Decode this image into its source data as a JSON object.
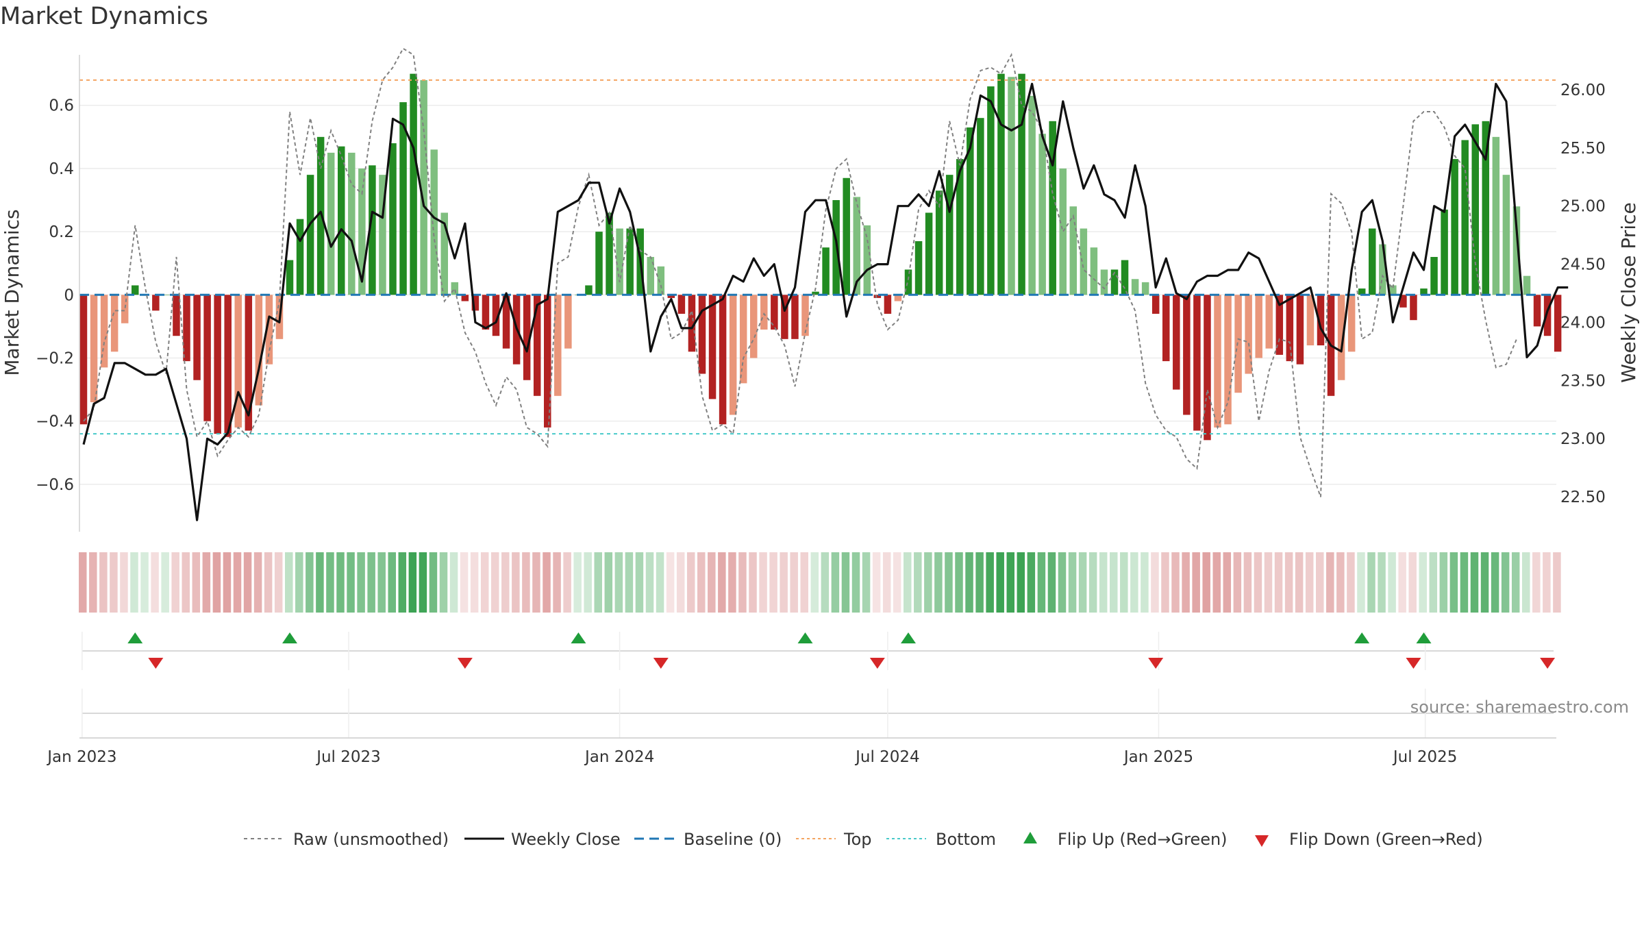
{
  "chart_data": {
    "type": "bar",
    "title": "Market Dynamics",
    "ylabel_left": "Market Dynamics",
    "ylabel_right": "Weekly Close Price",
    "ylim_left": [
      -0.75,
      0.76
    ],
    "ylim_right": [
      22.2,
      26.3
    ],
    "yticks_left": [
      "−0.6",
      "−0.4",
      "−0.2",
      "0",
      "0.2",
      "0.4",
      "0.6"
    ],
    "yticks_right": [
      "22.50",
      "23.00",
      "23.50",
      "24.00",
      "24.50",
      "25.00",
      "25.50",
      "26.00"
    ],
    "xticks": [
      "Jan 2023",
      "Jul 2023",
      "Jan 2024",
      "Jul 2024",
      "Jan 2025",
      "Jul 2025"
    ],
    "top_line": 0.68,
    "bottom_line": -0.44,
    "baseline": 0,
    "source": "source: sharemaestro.com",
    "legend": [
      "Raw (unsmoothed)",
      "Weekly Close",
      "Baseline (0)",
      "Top",
      "Bottom",
      "Flip Up (Red→Green)",
      "Flip Down (Green→Red)"
    ],
    "colors": {
      "strong_green": "#228b22",
      "light_green": "#7fbf7f",
      "strong_red": "#b22222",
      "light_red": "#e9967a",
      "top": "#f4a460",
      "bottom": "#48c9c9",
      "baseline": "#1f77b4",
      "raw": "#808080",
      "close": "#111111"
    },
    "weeks_start": "2023-01-02",
    "dynamics": [
      -0.41,
      -0.34,
      -0.23,
      -0.18,
      -0.09,
      0.03,
      0.0,
      -0.05,
      0.0,
      -0.13,
      -0.21,
      -0.27,
      -0.4,
      -0.44,
      -0.45,
      -0.42,
      -0.43,
      -0.35,
      -0.22,
      -0.14,
      0.11,
      0.24,
      0.38,
      0.5,
      0.45,
      0.47,
      0.45,
      0.4,
      0.41,
      0.38,
      0.48,
      0.61,
      0.7,
      0.68,
      0.46,
      0.26,
      0.04,
      -0.02,
      -0.05,
      -0.11,
      -0.13,
      -0.17,
      -0.22,
      -0.27,
      -0.32,
      -0.42,
      -0.32,
      -0.17,
      0.0,
      0.03,
      0.2,
      0.26,
      0.21,
      0.21,
      0.21,
      0.12,
      0.09,
      -0.01,
      -0.06,
      -0.18,
      -0.25,
      -0.33,
      -0.41,
      -0.38,
      -0.28,
      -0.2,
      -0.11,
      -0.11,
      -0.14,
      -0.14,
      -0.13,
      0.01,
      0.15,
      0.3,
      0.37,
      0.31,
      0.22,
      -0.01,
      -0.06,
      -0.02,
      0.08,
      0.17,
      0.26,
      0.33,
      0.38,
      0.43,
      0.53,
      0.56,
      0.66,
      0.7,
      0.69,
      0.7,
      0.63,
      0.51,
      0.55,
      0.4,
      0.28,
      0.21,
      0.15,
      0.08,
      0.08,
      0.11,
      0.05,
      0.04,
      -0.06,
      -0.21,
      -0.3,
      -0.38,
      -0.43,
      -0.46,
      -0.42,
      -0.41,
      -0.31,
      -0.25,
      -0.2,
      -0.17,
      -0.19,
      -0.21,
      -0.22,
      -0.16,
      -0.16,
      -0.32,
      -0.27,
      -0.18,
      0.02,
      0.21,
      0.16,
      0.03,
      -0.04,
      -0.08,
      0.02,
      0.12,
      0.27,
      0.43,
      0.49,
      0.54,
      0.55,
      0.5,
      0.38,
      0.28,
      0.06,
      -0.1,
      -0.13,
      -0.18
    ],
    "raw": [
      -0.4,
      -0.36,
      -0.15,
      -0.05,
      -0.05,
      0.22,
      0.02,
      -0.15,
      -0.25,
      0.12,
      -0.3,
      -0.45,
      -0.4,
      -0.51,
      -0.46,
      -0.42,
      -0.45,
      -0.38,
      -0.18,
      -0.02,
      0.58,
      0.38,
      0.56,
      0.4,
      0.52,
      0.44,
      0.35,
      0.32,
      0.55,
      0.68,
      0.72,
      0.78,
      0.76,
      0.52,
      0.18,
      -0.02,
      0.02,
      -0.12,
      -0.18,
      -0.28,
      -0.35,
      -0.26,
      -0.3,
      -0.42,
      -0.44,
      -0.48,
      0.1,
      0.12,
      0.28,
      0.38,
      0.22,
      0.26,
      0.04,
      0.22,
      0.14,
      0.12,
      0.03,
      -0.14,
      -0.12,
      -0.05,
      -0.32,
      -0.43,
      -0.41,
      -0.44,
      -0.2,
      -0.14,
      -0.06,
      -0.1,
      -0.16,
      -0.29,
      -0.12,
      0.02,
      0.27,
      0.4,
      0.43,
      0.29,
      0.18,
      -0.03,
      -0.11,
      -0.08,
      0.05,
      0.27,
      0.33,
      0.28,
      0.55,
      0.41,
      0.62,
      0.71,
      0.72,
      0.7,
      0.76,
      0.6,
      0.58,
      0.52,
      0.32,
      0.2,
      0.25,
      0.08,
      0.05,
      0.02,
      0.07,
      0.02,
      -0.05,
      -0.28,
      -0.38,
      -0.43,
      -0.45,
      -0.52,
      -0.55,
      -0.3,
      -0.42,
      -0.34,
      -0.14,
      -0.15,
      -0.4,
      -0.24,
      -0.14,
      -0.15,
      -0.45,
      -0.55,
      -0.64,
      0.32,
      0.29,
      0.2,
      -0.14,
      -0.12,
      0.06,
      0.02,
      0.28,
      0.55,
      0.58,
      0.58,
      0.53,
      0.44,
      0.4,
      0.1,
      -0.08,
      -0.23,
      -0.22,
      -0.14
    ],
    "close": [
      22.95,
      23.3,
      23.35,
      23.65,
      23.65,
      23.6,
      23.55,
      23.55,
      23.6,
      23.3,
      23.0,
      22.3,
      23.0,
      22.95,
      23.05,
      23.4,
      23.2,
      23.6,
      24.05,
      24.0,
      24.85,
      24.7,
      24.85,
      24.95,
      24.65,
      24.8,
      24.7,
      24.35,
      24.95,
      24.9,
      25.75,
      25.7,
      25.5,
      25.0,
      24.9,
      24.85,
      24.55,
      24.85,
      24.0,
      23.95,
      24.0,
      24.25,
      23.95,
      23.75,
      24.15,
      24.2,
      24.95,
      25.0,
      25.05,
      25.2,
      25.2,
      24.85,
      25.15,
      24.95,
      24.55,
      23.75,
      24.05,
      24.2,
      23.95,
      23.95,
      24.1,
      24.15,
      24.2,
      24.4,
      24.35,
      24.55,
      24.4,
      24.5,
      24.1,
      24.3,
      24.95,
      25.05,
      25.05,
      24.7,
      24.05,
      24.35,
      24.45,
      24.5,
      24.5,
      25.0,
      25.0,
      25.1,
      25.0,
      25.3,
      24.95,
      25.3,
      25.5,
      25.95,
      25.9,
      25.7,
      25.65,
      25.7,
      26.05,
      25.6,
      25.35,
      25.9,
      25.5,
      25.15,
      25.35,
      25.1,
      25.05,
      24.9,
      25.35,
      25.0,
      24.3,
      24.55,
      24.25,
      24.2,
      24.35,
      24.4,
      24.4,
      24.45,
      24.45,
      24.6,
      24.55,
      24.35,
      24.15,
      24.2,
      24.25,
      24.3,
      23.95,
      23.8,
      23.75,
      24.45,
      24.95,
      25.05,
      24.7,
      24.0,
      24.3,
      24.6,
      24.45,
      25.0,
      24.95,
      25.6,
      25.7,
      25.55,
      25.4,
      26.05,
      25.9,
      24.8,
      23.7,
      23.8,
      24.1,
      24.3,
      24.3
    ],
    "flip_up_weeks": [
      5,
      20,
      48,
      70,
      80,
      124,
      130
    ],
    "flip_down_weeks": [
      7,
      37,
      56,
      77,
      104,
      129,
      142
    ]
  }
}
